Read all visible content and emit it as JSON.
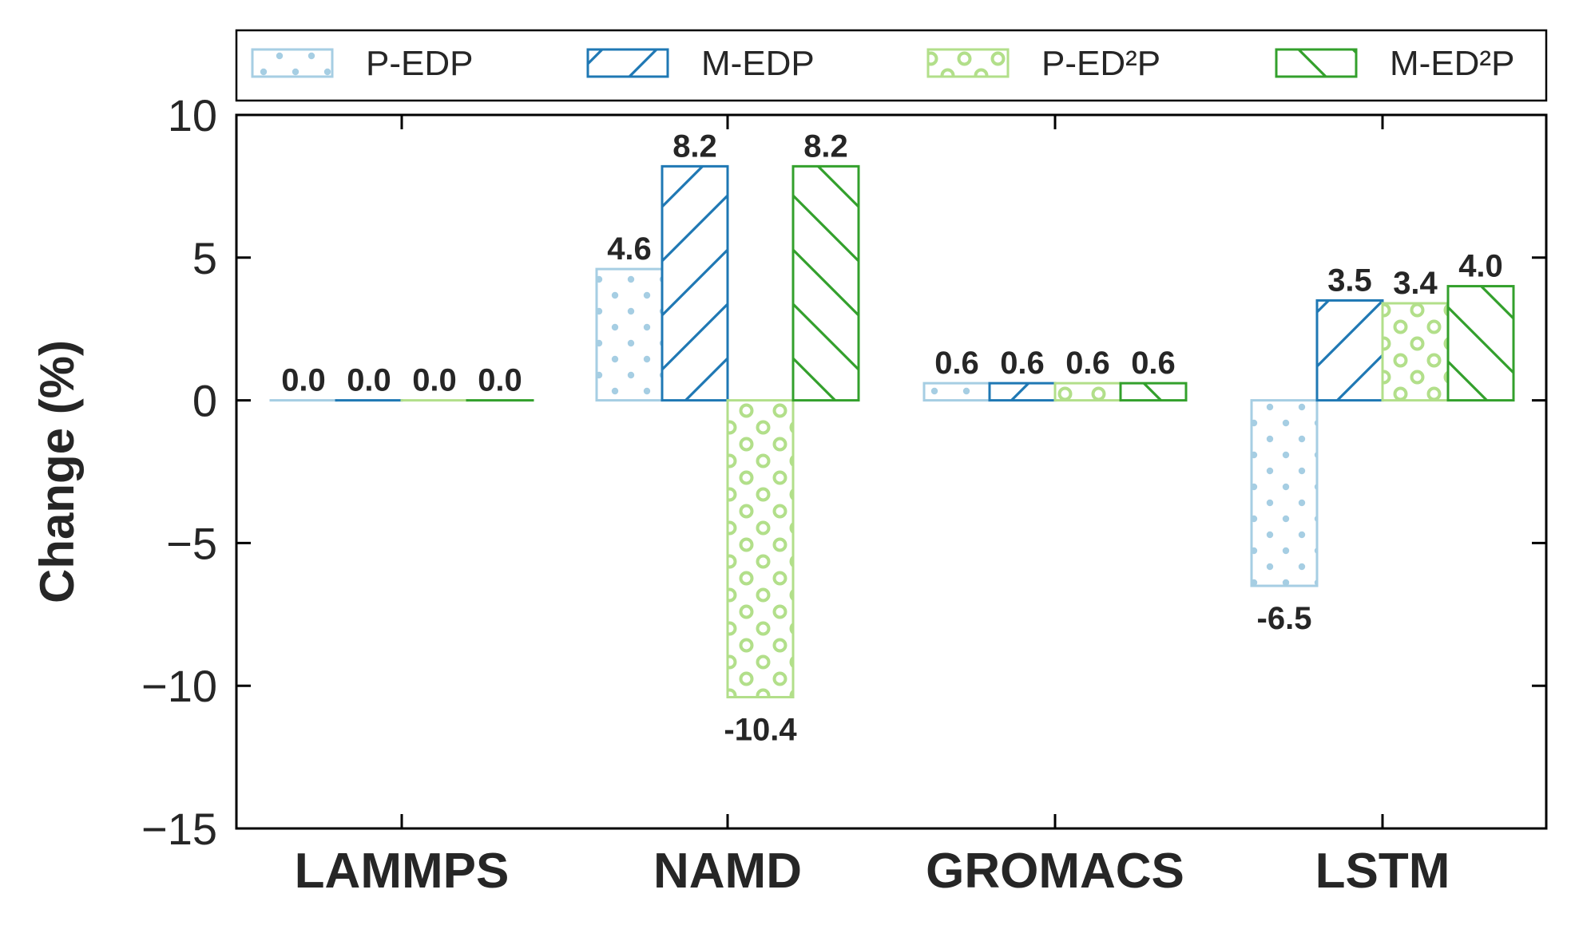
{
  "chart_data": {
    "type": "bar",
    "categories": [
      "LAMMPS",
      "NAMD",
      "GROMACS",
      "LSTM"
    ],
    "series": [
      {
        "name": "P-EDP",
        "values": [
          0.0,
          4.6,
          0.6,
          -6.5
        ],
        "labels": [
          "0.0",
          "4.6",
          "0.6",
          "-6.5"
        ],
        "color": "#a6cee3",
        "pattern": "dots"
      },
      {
        "name": "M-EDP",
        "values": [
          0.0,
          8.2,
          0.6,
          3.5
        ],
        "labels": [
          "0.0",
          "8.2",
          "0.6",
          "3.5"
        ],
        "color": "#1f78b4",
        "pattern": "forward-hatch"
      },
      {
        "name": "P-ED²P",
        "values": [
          0.0,
          -10.4,
          0.6,
          3.4
        ],
        "labels": [
          "0.0",
          "-10.4",
          "0.6",
          "3.4"
        ],
        "color": "#b2df8a",
        "pattern": "circles"
      },
      {
        "name": "M-ED²P",
        "values": [
          0.0,
          8.2,
          0.6,
          4.0
        ],
        "labels": [
          "0.0",
          "8.2",
          "0.6",
          "4.0"
        ],
        "color": "#33a02c",
        "pattern": "back-hatch"
      }
    ],
    "ylabel": "Change (%)",
    "xlabel": "",
    "ylim": [
      -15,
      10
    ],
    "yticks": [
      10,
      5,
      0,
      -5,
      -10,
      -15
    ],
    "ytick_labels": [
      "10",
      "5",
      "0",
      "−5",
      "−10",
      "−15"
    ],
    "grid": false,
    "legend": "top, above plot, single row"
  }
}
